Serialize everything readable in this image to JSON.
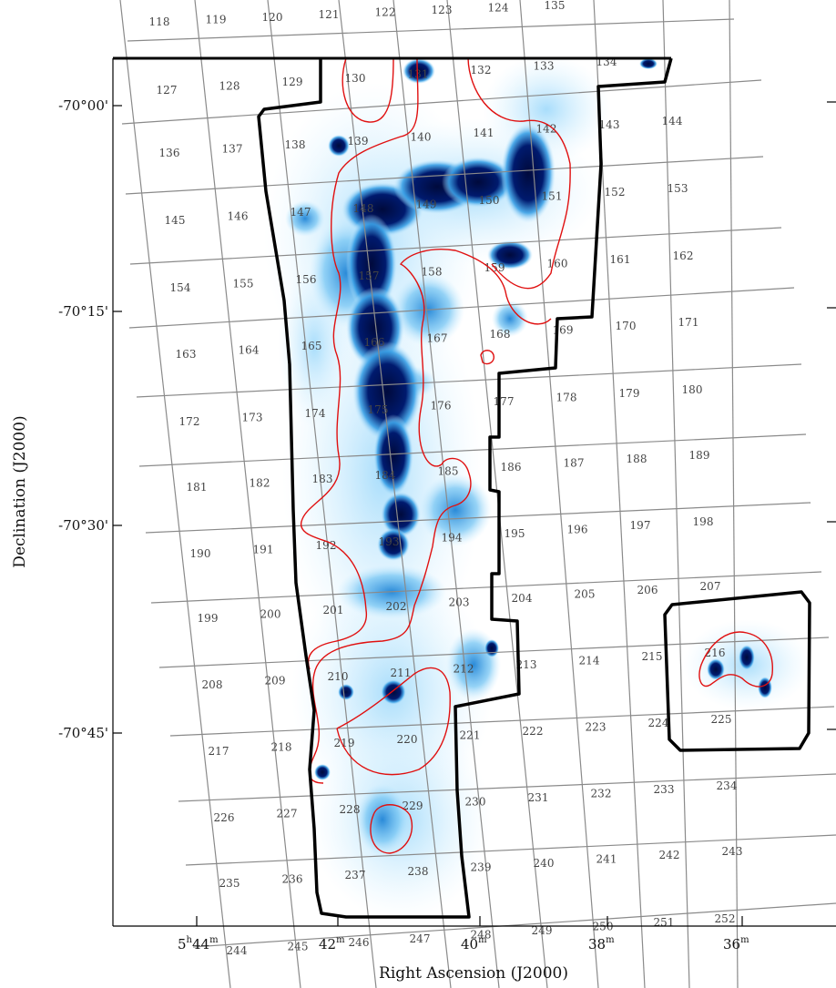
{
  "axes": {
    "xlabel": "Right Ascension (J2000)",
    "ylabel": "Declination (J2000)",
    "x_ticks": [
      {
        "hours": "5",
        "minutes": "44",
        "label": "5h44m"
      },
      {
        "minutes": "42",
        "label": "42m"
      },
      {
        "minutes": "40",
        "label": "40m"
      },
      {
        "minutes": "38",
        "label": "38m"
      },
      {
        "minutes": "36",
        "label": "36m"
      }
    ],
    "y_ticks": [
      "-70°00'",
      "-70°15'",
      "-70°30'",
      "-70°45'"
    ]
  },
  "colors": {
    "grid": "#8a8a8a",
    "contour": "#e01010",
    "boundary": "#000000",
    "emission_light": "#c8ecff",
    "emission_mid": "#3aa0e6",
    "emission_dark": "#000a3c"
  },
  "field_numbers": [
    [
      "118",
      "119",
      "120",
      "121",
      "122",
      "123",
      "124",
      "135"
    ],
    [
      "127",
      "128",
      "129",
      "130",
      "131",
      "132",
      "133",
      "134"
    ],
    [
      "136",
      "137",
      "138",
      "139",
      "140",
      "141",
      "142",
      "143",
      "144"
    ],
    [
      "145",
      "146",
      "147",
      "148",
      "149",
      "150",
      "151",
      "152",
      "153"
    ],
    [
      "154",
      "155",
      "156",
      "157",
      "158",
      "159",
      "160",
      "161",
      "162"
    ],
    [
      "163",
      "164",
      "165",
      "166",
      "167",
      "168",
      "169",
      "170",
      "171"
    ],
    [
      "172",
      "173",
      "174",
      "175",
      "176",
      "177",
      "178",
      "179",
      "180"
    ],
    [
      "181",
      "182",
      "183",
      "184",
      "185",
      "186",
      "187",
      "188",
      "189"
    ],
    [
      "190",
      "191",
      "192",
      "193",
      "194",
      "195",
      "196",
      "197",
      "198"
    ],
    [
      "199",
      "200",
      "201",
      "202",
      "203",
      "204",
      "205",
      "206",
      "207"
    ],
    [
      "208",
      "209",
      "210",
      "211",
      "212",
      "213",
      "214",
      "215",
      "216"
    ],
    [
      "217",
      "218",
      "219",
      "220",
      "221",
      "222",
      "223",
      "224",
      "225"
    ],
    [
      "226",
      "227",
      "228",
      "229",
      "230",
      "231",
      "232",
      "233",
      "234"
    ],
    [
      "235",
      "236",
      "237",
      "238",
      "239",
      "240",
      "241",
      "242",
      "243"
    ],
    [
      "244",
      "245",
      "246",
      "247",
      "248",
      "249",
      "250",
      "251",
      "252"
    ]
  ]
}
